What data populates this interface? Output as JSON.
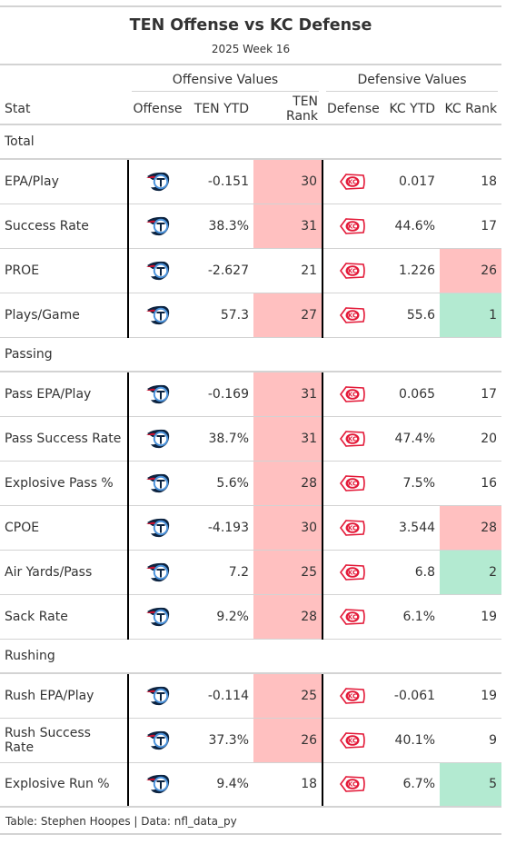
{
  "title": "TEN Offense vs KC Defense",
  "subtitle": "2025 Week 16",
  "spanners": {
    "offense": "Offensive Values",
    "defense": "Defensive Values"
  },
  "columns": [
    "Stat",
    "Offense",
    "TEN YTD",
    "TEN Rank",
    "Defense",
    "KC YTD",
    "KC Rank"
  ],
  "colors": {
    "bad": "#ffc0c0",
    "good": "#b3ead1",
    "titans_navy": "#0c2340",
    "titans_blue": "#4b92db",
    "chiefs_red": "#e31837"
  },
  "offense_logo": "titans-logo-icon",
  "defense_logo": "chiefs-logo-icon",
  "groups": [
    {
      "name": "Total",
      "rows": [
        {
          "stat": "EPA/Play",
          "ten_ytd": "-0.151",
          "ten_rank": "30",
          "ten_hl": "bad",
          "kc_ytd": "0.017",
          "kc_rank": "18",
          "kc_hl": ""
        },
        {
          "stat": "Success Rate",
          "ten_ytd": "38.3%",
          "ten_rank": "31",
          "ten_hl": "bad",
          "kc_ytd": "44.6%",
          "kc_rank": "17",
          "kc_hl": ""
        },
        {
          "stat": "PROE",
          "ten_ytd": "-2.627",
          "ten_rank": "21",
          "ten_hl": "",
          "kc_ytd": "1.226",
          "kc_rank": "26",
          "kc_hl": "bad"
        },
        {
          "stat": "Plays/Game",
          "ten_ytd": "57.3",
          "ten_rank": "27",
          "ten_hl": "bad",
          "kc_ytd": "55.6",
          "kc_rank": "1",
          "kc_hl": "good"
        }
      ]
    },
    {
      "name": "Passing",
      "rows": [
        {
          "stat": "Pass EPA/Play",
          "ten_ytd": "-0.169",
          "ten_rank": "31",
          "ten_hl": "bad",
          "kc_ytd": "0.065",
          "kc_rank": "17",
          "kc_hl": ""
        },
        {
          "stat": "Pass Success Rate",
          "ten_ytd": "38.7%",
          "ten_rank": "31",
          "ten_hl": "bad",
          "kc_ytd": "47.4%",
          "kc_rank": "20",
          "kc_hl": ""
        },
        {
          "stat": "Explosive Pass %",
          "ten_ytd": "5.6%",
          "ten_rank": "28",
          "ten_hl": "bad",
          "kc_ytd": "7.5%",
          "kc_rank": "16",
          "kc_hl": ""
        },
        {
          "stat": "CPOE",
          "ten_ytd": "-4.193",
          "ten_rank": "30",
          "ten_hl": "bad",
          "kc_ytd": "3.544",
          "kc_rank": "28",
          "kc_hl": "bad"
        },
        {
          "stat": "Air Yards/Pass",
          "ten_ytd": "7.2",
          "ten_rank": "25",
          "ten_hl": "bad",
          "kc_ytd": "6.8",
          "kc_rank": "2",
          "kc_hl": "good"
        },
        {
          "stat": "Sack Rate",
          "ten_ytd": "9.2%",
          "ten_rank": "28",
          "ten_hl": "bad",
          "kc_ytd": "6.1%",
          "kc_rank": "19",
          "kc_hl": ""
        }
      ]
    },
    {
      "name": "Rushing",
      "rows": [
        {
          "stat": "Rush EPA/Play",
          "ten_ytd": "-0.114",
          "ten_rank": "25",
          "ten_hl": "bad",
          "kc_ytd": "-0.061",
          "kc_rank": "19",
          "kc_hl": ""
        },
        {
          "stat": "Rush Success Rate",
          "ten_ytd": "37.3%",
          "ten_rank": "26",
          "ten_hl": "bad",
          "kc_ytd": "40.1%",
          "kc_rank": "9",
          "kc_hl": ""
        },
        {
          "stat": "Explosive Run %",
          "ten_ytd": "9.4%",
          "ten_rank": "18",
          "ten_hl": "",
          "kc_ytd": "6.7%",
          "kc_rank": "5",
          "kc_hl": "good"
        }
      ]
    }
  ],
  "footer": "Table: Stephen Hoopes | Data: nfl_data_py"
}
